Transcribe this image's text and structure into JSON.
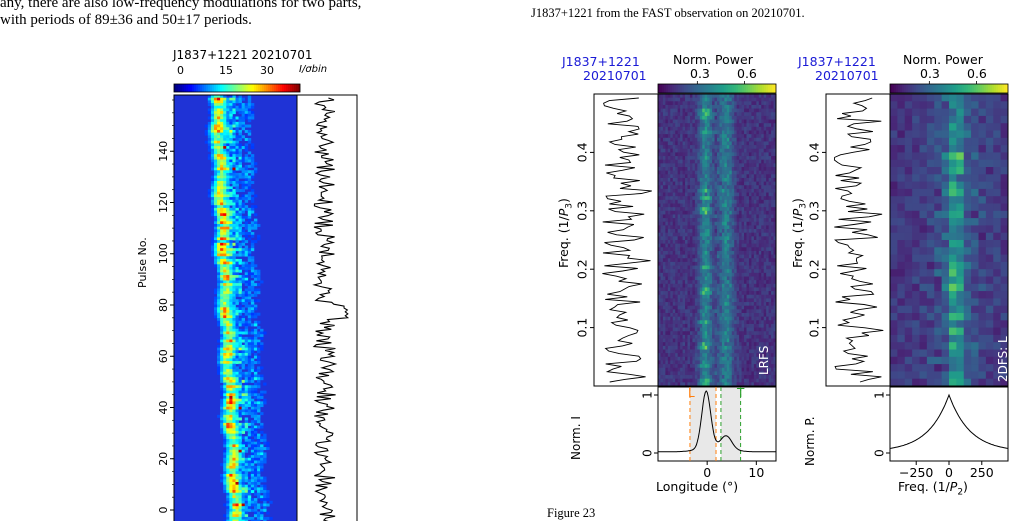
{
  "paper": {
    "left_text_line1": "any, there are also low-frequency modulations for two parts,",
    "left_text_line2": "with periods of 89±36 and 50±17 periods.",
    "right_caption_line": "J1837+1221 from the FAST observation on 20210701.",
    "figure_label_bottom": "Figure 23"
  },
  "colors": {
    "jet_low": "#1f2bd0",
    "viridis_low": "#2a2a6e",
    "viridis_high": "#f6e532",
    "trace": "#000000",
    "label_L": "#ff7f0e",
    "label_T": "#2ca02c",
    "psr_label": "#1a1ad6"
  },
  "chart_data": [
    {
      "type": "heatmap",
      "title": "J1837+1221   20210701",
      "colorbar_label": "I/σbin",
      "colorbar_ticks": [
        "0",
        "15",
        "30"
      ],
      "colormap": "jet",
      "ylabel": "Pulse No.",
      "yticks": [
        "0",
        "20",
        "40",
        "60",
        "80",
        "100",
        "120",
        "140"
      ],
      "ylim": [
        0,
        160
      ],
      "side_panel": "on-pulse energy per pulse"
    },
    {
      "type": "heatmap",
      "title_left_line1": "J1837+1221",
      "title_left_line2": "20210701",
      "colorbar_label": "Norm. Power",
      "colorbar_ticks": [
        "0.3",
        "0.6"
      ],
      "colormap": "viridis",
      "ylabel": "Freq. (1/P3)",
      "yticks": [
        "0.1",
        "0.2",
        "0.3",
        "0.4"
      ],
      "ylim": [
        0,
        0.5
      ],
      "panel_tag": "LRFS",
      "profile": {
        "ylabel": "Norm. I",
        "xlabel": "Longitude (°)",
        "xticks": [
          "0",
          "10"
        ],
        "xlim": [
          -10,
          14
        ],
        "yticks": [
          "0",
          "1"
        ],
        "regions": [
          {
            "name": "L",
            "range": [
              -3.5,
              1.8
            ]
          },
          {
            "name": "T",
            "range": [
              2.8,
              6.8
            ]
          }
        ]
      }
    },
    {
      "type": "heatmap",
      "title_left_line1": "J1837+1221",
      "title_left_line2": "20210701",
      "colorbar_label": "Norm. Power",
      "colorbar_ticks": [
        "0.3",
        "0.6"
      ],
      "colormap": "viridis",
      "ylabel": "Freq. (1/P3)",
      "yticks": [
        "0.1",
        "0.2",
        "0.3",
        "0.4"
      ],
      "ylim": [
        0,
        0.5
      ],
      "panel_tag": "2DFS: L",
      "profile": {
        "ylabel": "Norm. P.",
        "xlabel": "Freq. (1/P2)",
        "xticks": [
          "−250",
          "0",
          "250"
        ],
        "xlim": [
          -450,
          450
        ],
        "yticks": [
          "0",
          "1"
        ]
      }
    }
  ]
}
